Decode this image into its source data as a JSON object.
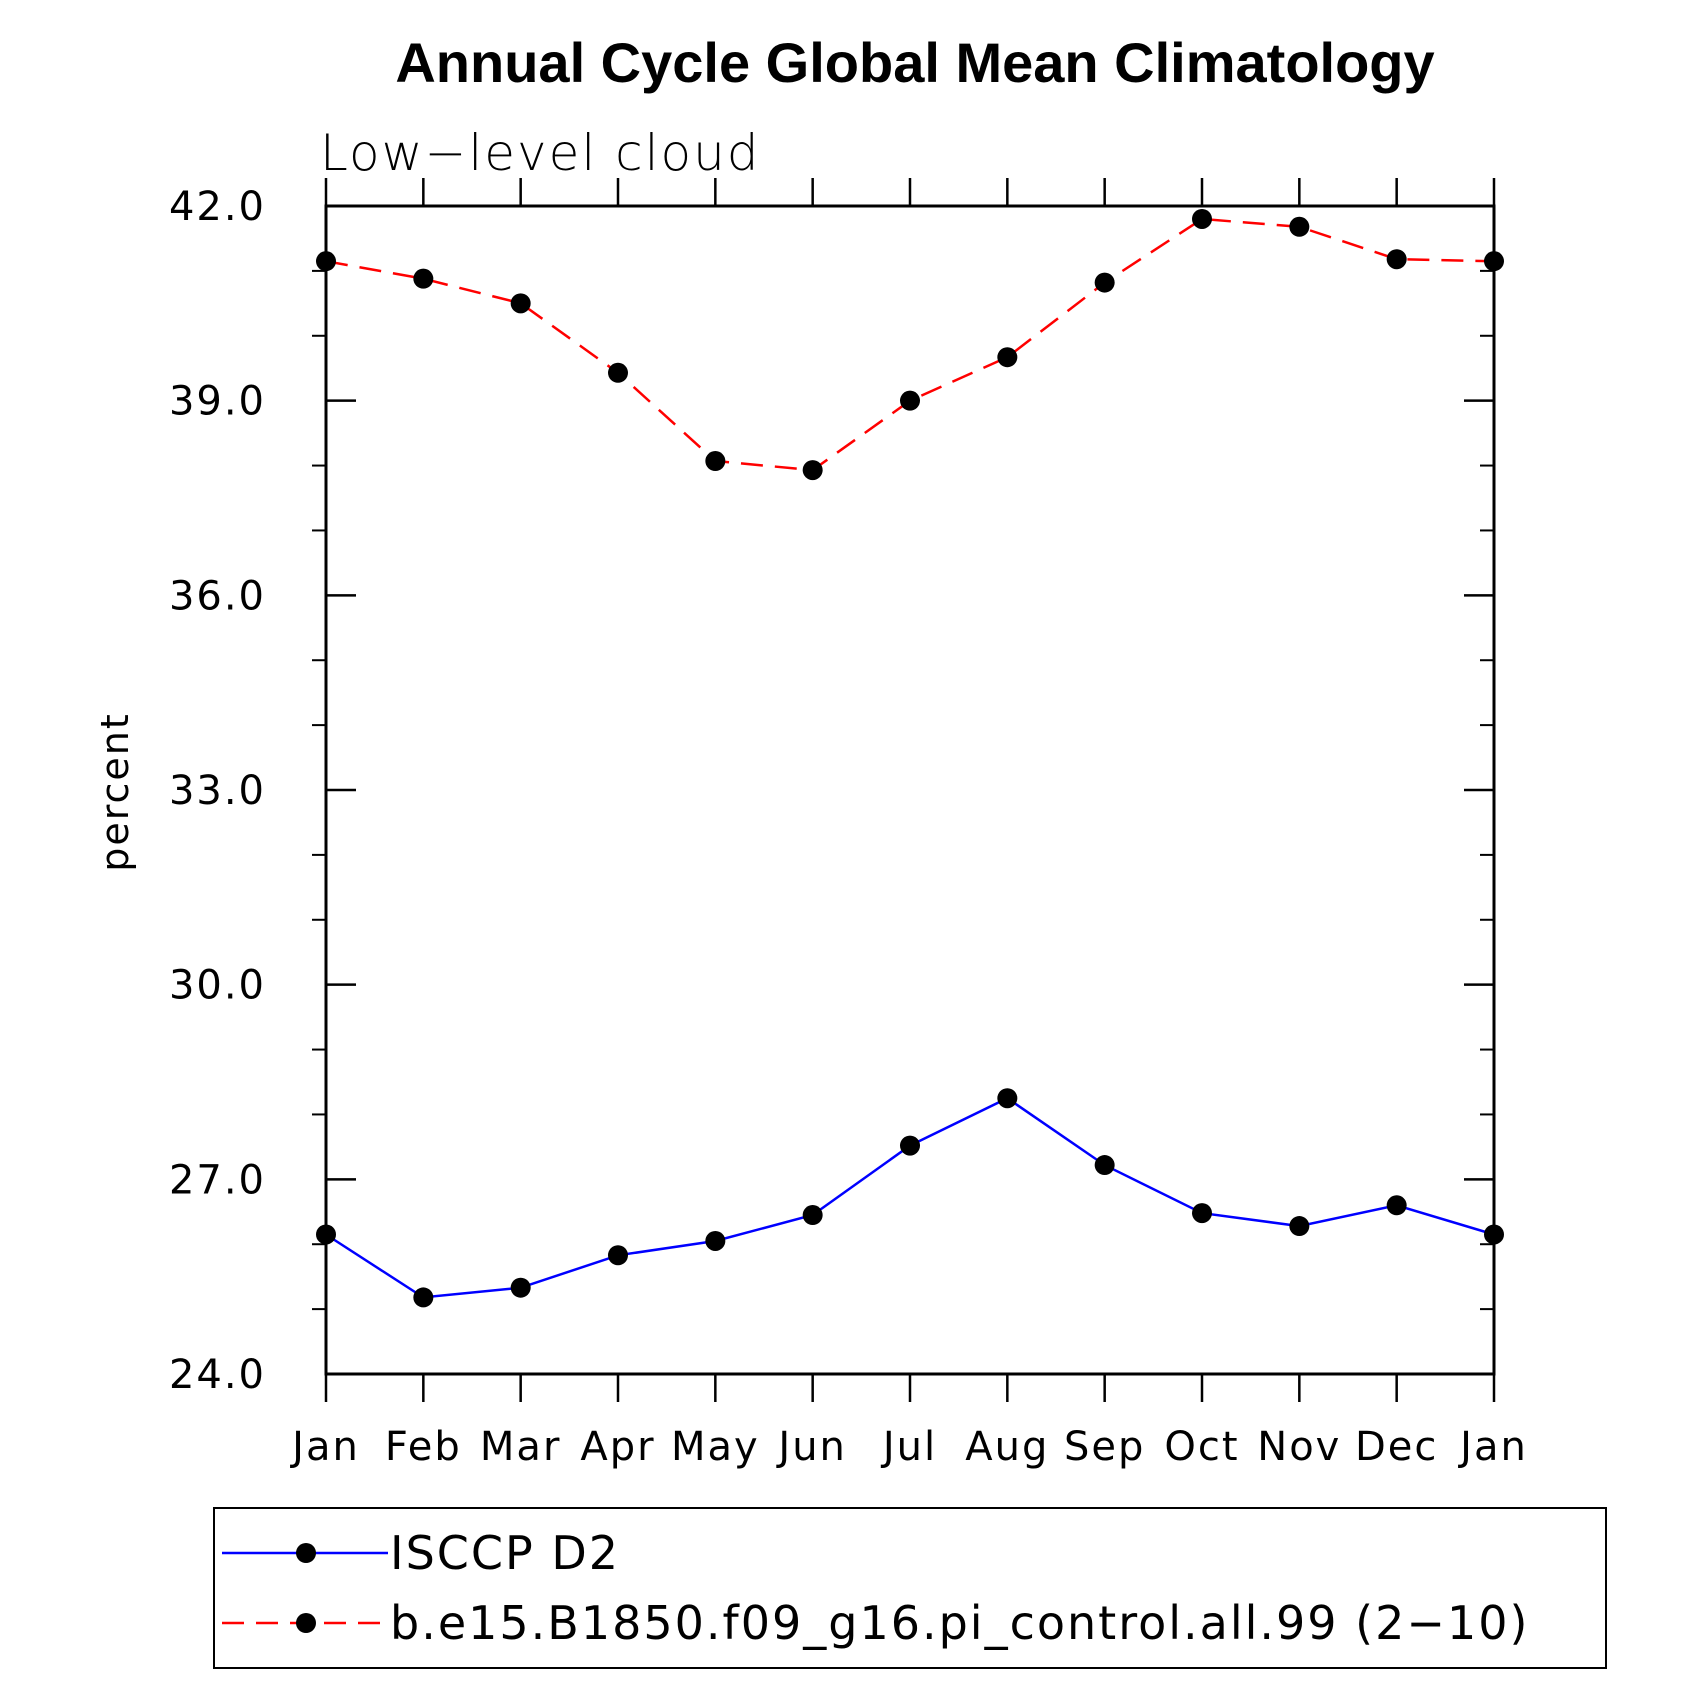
{
  "chart_data": {
    "type": "line",
    "title": "Annual Cycle Global Mean Climatology",
    "subtitle": "Low−level cloud",
    "xlabel": "",
    "ylabel": "percent",
    "categories": [
      "Jan",
      "Feb",
      "Mar",
      "Apr",
      "May",
      "Jun",
      "Jul",
      "Aug",
      "Sep",
      "Oct",
      "Nov",
      "Dec",
      "Jan"
    ],
    "ylim": [
      24.0,
      42.0
    ],
    "yticks": [
      24.0,
      27.0,
      30.0,
      33.0,
      36.0,
      39.0,
      42.0
    ],
    "ytick_labels": [
      "24.0",
      "27.0",
      "30.0",
      "33.0",
      "36.0",
      "39.0",
      "42.0"
    ],
    "y_minor_step": 1.0,
    "grid": false,
    "legend_position": "bottom",
    "series": [
      {
        "name": "ISCCP D2",
        "color": "#0000ff",
        "line_style": "solid",
        "marker": "filled-circle",
        "values": [
          26.15,
          25.18,
          25.33,
          25.83,
          26.05,
          26.45,
          27.52,
          28.25,
          27.22,
          26.48,
          26.28,
          26.6,
          26.15
        ]
      },
      {
        "name": "b.e15.B1850.f09_g16.pi_control.all.99 (2−10)",
        "color": "#ff0000",
        "line_style": "dashed",
        "marker": "filled-circle",
        "values": [
          41.15,
          40.88,
          40.5,
          39.43,
          38.07,
          37.93,
          39.0,
          39.67,
          40.82,
          41.8,
          41.68,
          41.18,
          41.15
        ]
      }
    ]
  }
}
